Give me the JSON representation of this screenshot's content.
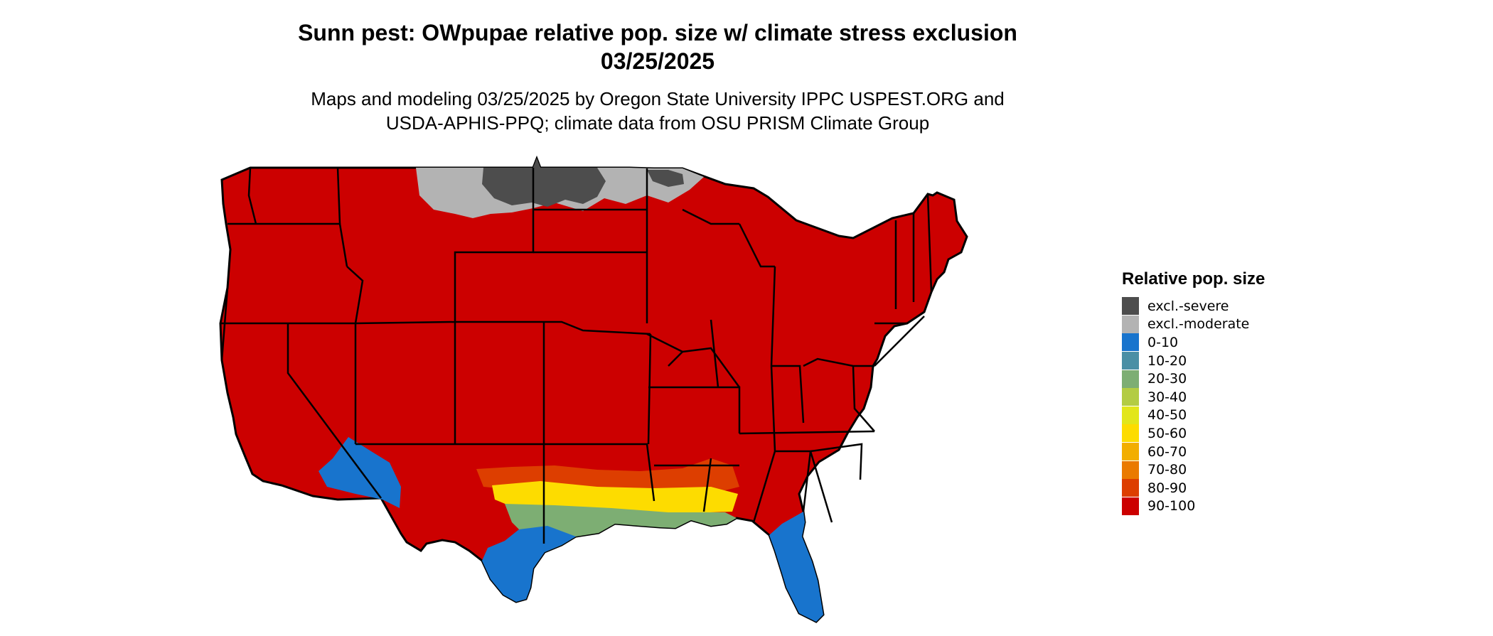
{
  "title": {
    "line1": "Sunn pest: OWpupae relative pop. size w/ climate stress exclusion",
    "line2": "03/25/2025"
  },
  "subtitle": {
    "line1": "Maps and modeling 03/25/2025 by Oregon State University IPPC USPEST.ORG and",
    "line2": "USDA-APHIS-PPQ; climate data from OSU PRISM Climate Group"
  },
  "legend": {
    "title": "Relative pop. size",
    "items": [
      {
        "label": "excl.-severe",
        "color": "#4d4d4d"
      },
      {
        "label": "excl.-moderate",
        "color": "#b3b3b3"
      },
      {
        "label": "0-10",
        "color": "#1874cd"
      },
      {
        "label": "10-20",
        "color": "#4a8fa5"
      },
      {
        "label": "20-30",
        "color": "#7dae73"
      },
      {
        "label": "30-40",
        "color": "#b3cc43"
      },
      {
        "label": "40-50",
        "color": "#e2e61a"
      },
      {
        "label": "50-60",
        "color": "#fddc00"
      },
      {
        "label": "60-70",
        "color": "#f2ae00"
      },
      {
        "label": "70-80",
        "color": "#ea7a00"
      },
      {
        "label": "80-90",
        "color": "#dd3e00"
      },
      {
        "label": "90-100",
        "color": "#cc0000"
      }
    ]
  }
}
